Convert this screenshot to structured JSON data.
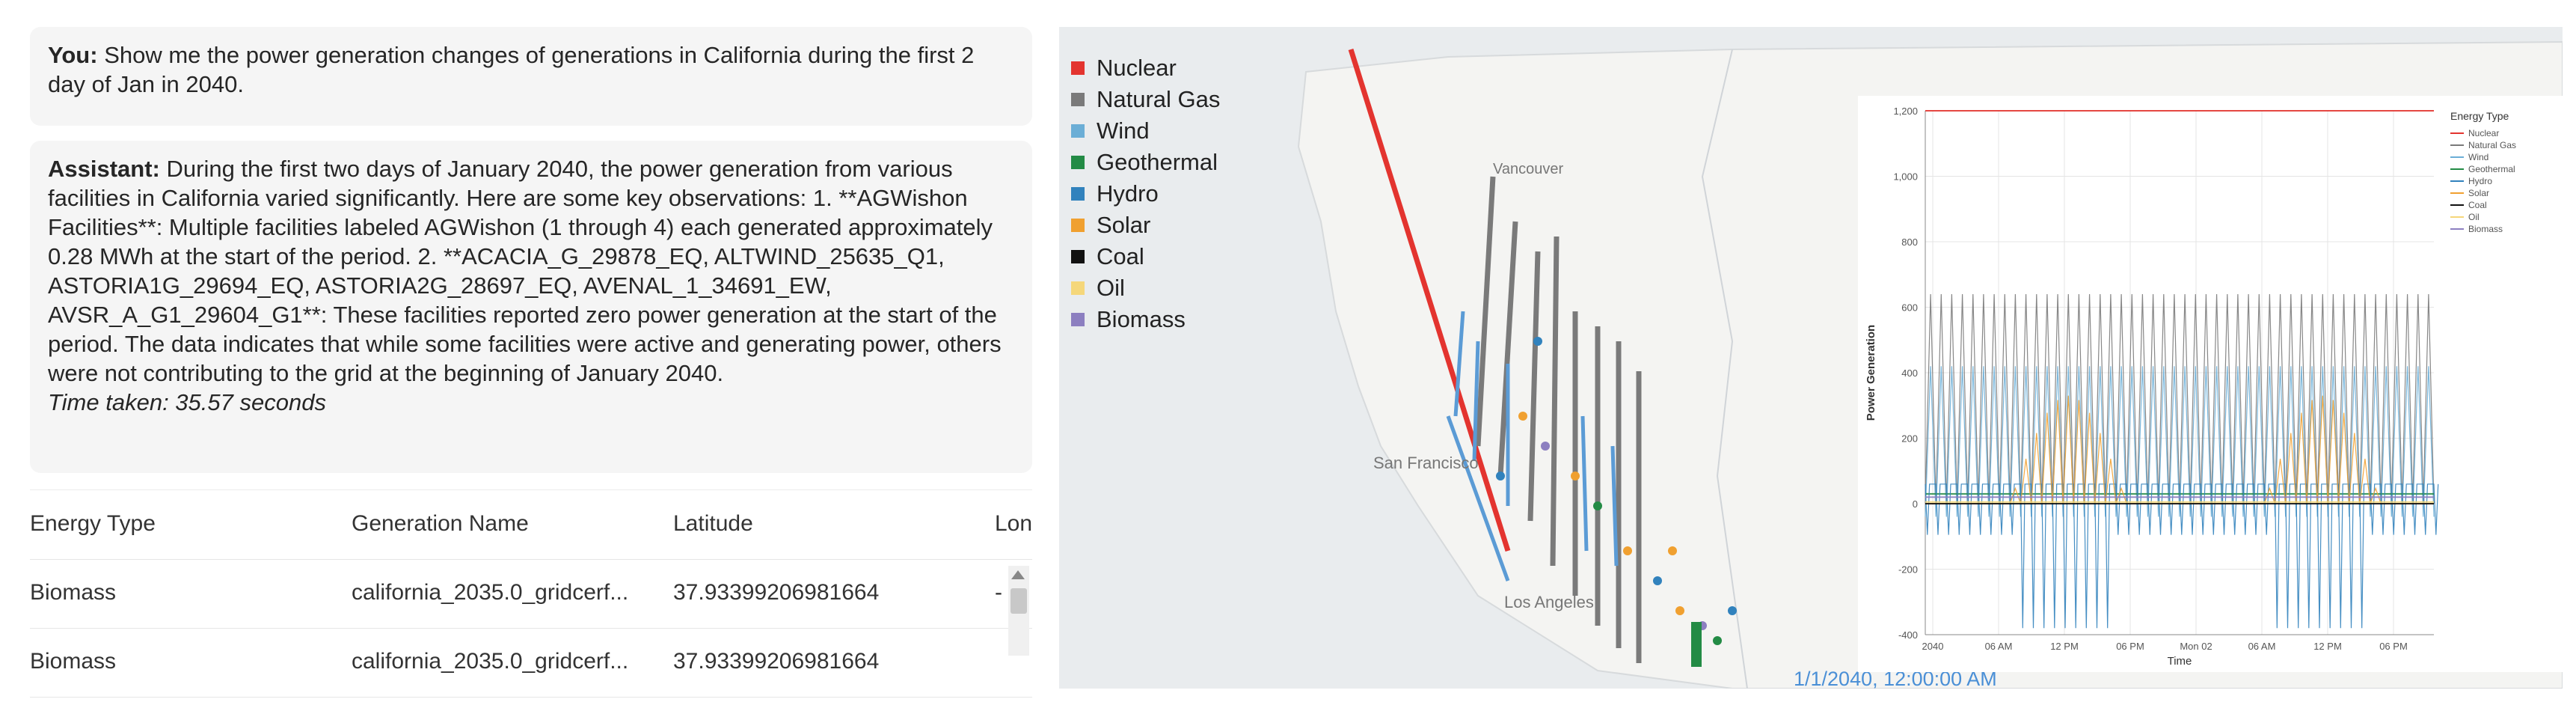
{
  "chat": {
    "user_label": "You:",
    "user_text": "Show me the power generation changes of generations in California during the first 2 day of Jan in 2040.",
    "assistant_label": "Assistant:",
    "assistant_text": "During the first two days of January 2040, the power generation from various facilities in California varied significantly. Here are some key observations: 1. **AGWishon Facilities**: Multiple facilities labeled AGWishon (1 through 4) each generated approximately 0.28 MWh at the start of the period. 2. **ACACIA_G_29878_EQ, ALTWIND_25635_Q1, ASTORIA1G_29694_EQ, ASTORIA2G_28697_EQ, AVENAL_1_34691_EW, AVSR_A_G1_29604_G1**: These facilities reported zero power generation at the start of the period. The data indicates that while some facilities were active and generating power, others were not contributing to the grid at the beginning of January 2040.",
    "time_taken": "Time taken: 35.57 seconds"
  },
  "table": {
    "headers": [
      "Energy Type",
      "Generation Name",
      "Latitude",
      "Lon"
    ],
    "rows": [
      [
        "Biomass",
        "california_2035.0_gridcerf...",
        "37.93399206981664",
        "-"
      ],
      [
        "Biomass",
        "california_2035.0_gridcerf...",
        "37.93399206981664",
        ""
      ]
    ]
  },
  "map": {
    "legend": [
      {
        "label": "Nuclear",
        "color": "#e3342f"
      },
      {
        "label": "Natural Gas",
        "color": "#7a7a7a"
      },
      {
        "label": "Wind",
        "color": "#6baed6"
      },
      {
        "label": "Geothermal",
        "color": "#238b45"
      },
      {
        "label": "Hydro",
        "color": "#3182bd"
      },
      {
        "label": "Solar",
        "color": "#f0a030"
      },
      {
        "label": "Coal",
        "color": "#111111"
      },
      {
        "label": "Oil",
        "color": "#f5d77a"
      },
      {
        "label": "Biomass",
        "color": "#8c7fc0"
      }
    ],
    "places": [
      "Vancouver",
      "San Francisco",
      "Los Angeles"
    ],
    "time_readout": "1/1/2040, 12:00:00 AM"
  },
  "chart_data": {
    "type": "line",
    "xlabel": "Time",
    "ylabel": "Power Generation",
    "ylim": [
      -400,
      1200
    ],
    "yticks": [
      "-400",
      "-200",
      "0",
      "200",
      "400",
      "600",
      "800",
      "1,000",
      "1,200"
    ],
    "xticks": [
      "2040",
      "06 AM",
      "12 PM",
      "06 PM",
      "Mon 02",
      "06 AM",
      "12 PM",
      "06 PM"
    ],
    "legend_title": "Energy Type",
    "grid": true,
    "series": [
      {
        "name": "Nuclear",
        "color": "#e3342f",
        "pattern": "constant",
        "values": [
          1200
        ]
      },
      {
        "name": "Natural Gas",
        "color": "#7a7a7a",
        "pattern": "oscillate",
        "values": [
          0,
          640
        ]
      },
      {
        "name": "Wind",
        "color": "#6baed6",
        "pattern": "oscillate",
        "values": [
          -40,
          420
        ]
      },
      {
        "name": "Geothermal",
        "color": "#238b45",
        "pattern": "constant",
        "values": [
          30
        ]
      },
      {
        "name": "Hydro",
        "color": "#3182bd",
        "pattern": "spikes",
        "values": [
          -380,
          60
        ]
      },
      {
        "name": "Solar",
        "color": "#f0a030",
        "pattern": "daytime",
        "values": [
          0,
          330
        ]
      },
      {
        "name": "Coal",
        "color": "#111111",
        "pattern": "constant",
        "values": [
          0
        ]
      },
      {
        "name": "Oil",
        "color": "#f5d77a",
        "pattern": "constant",
        "values": [
          5
        ]
      },
      {
        "name": "Biomass",
        "color": "#8c7fc0",
        "pattern": "constant",
        "values": [
          20
        ]
      }
    ]
  }
}
